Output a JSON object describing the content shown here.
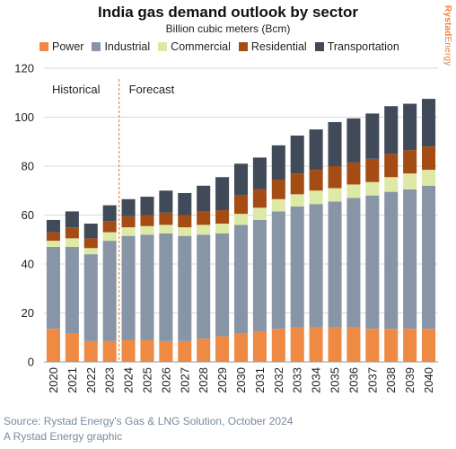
{
  "title": "India gas demand outlook by sector",
  "subtitle": "Billion cubic meters (Bcm)",
  "brand": {
    "first": "Rystad",
    "second": "Energy"
  },
  "footer": {
    "source": "Source: Rystad Energy's Gas & LNG Solution, October 2024",
    "credit": "A Rystad Energy graphic"
  },
  "chart_data": {
    "type": "bar",
    "stacked": true,
    "categories": [
      "2020",
      "2021",
      "2022",
      "2023",
      "2024",
      "2025",
      "2026",
      "2027",
      "2028",
      "2029",
      "2030",
      "2031",
      "2032",
      "2033",
      "2034",
      "2035",
      "2036",
      "2037",
      "2038",
      "2039",
      "2040"
    ],
    "ylim": [
      0,
      120
    ],
    "yticks": [
      0,
      20,
      40,
      60,
      80,
      100,
      120
    ],
    "grid": true,
    "legend_position": "top",
    "annotations": [
      {
        "text": "Historical"
      },
      {
        "text": "Forecast"
      }
    ],
    "divider_between": [
      "2023",
      "2024"
    ],
    "series": [
      {
        "name": "Power",
        "color": "#ee8a43",
        "values": [
          13.5,
          11.5,
          8.5,
          8.5,
          9,
          9,
          8.5,
          8.5,
          9.5,
          10.5,
          11.5,
          12.5,
          13.5,
          14,
          14,
          14,
          14,
          13.5,
          13.5,
          13.5,
          13.5
        ]
      },
      {
        "name": "Industrial",
        "color": "#8895a7",
        "values": [
          33.5,
          35.5,
          35.5,
          41,
          42.5,
          43,
          44,
          43,
          42.5,
          42,
          44.5,
          45.5,
          48,
          49.5,
          50.5,
          51.5,
          53,
          54.5,
          56,
          57,
          58.5
        ]
      },
      {
        "name": "Commercial",
        "color": "#dde9a5",
        "values": [
          2.5,
          3.5,
          2.5,
          3.5,
          3.5,
          3.5,
          3.5,
          3.5,
          4,
          4,
          4.5,
          5,
          5,
          5,
          5.5,
          5.5,
          5.5,
          5.5,
          6,
          6.5,
          6.5
        ]
      },
      {
        "name": "Residential",
        "color": "#a44c14",
        "values": [
          3.5,
          4.5,
          4,
          4.5,
          4.5,
          4.5,
          5,
          5,
          5.5,
          5.5,
          7.5,
          7.5,
          8,
          8.5,
          8.5,
          9,
          9,
          9.5,
          9.5,
          9.5,
          9.5
        ]
      },
      {
        "name": "Transportation",
        "color": "#414a59",
        "values": [
          5,
          6.5,
          6,
          6.5,
          7,
          7.5,
          9,
          9,
          10.5,
          13.5,
          13,
          13,
          14,
          15.5,
          16.5,
          18,
          18,
          18.5,
          19.5,
          19,
          19.5
        ]
      }
    ]
  }
}
